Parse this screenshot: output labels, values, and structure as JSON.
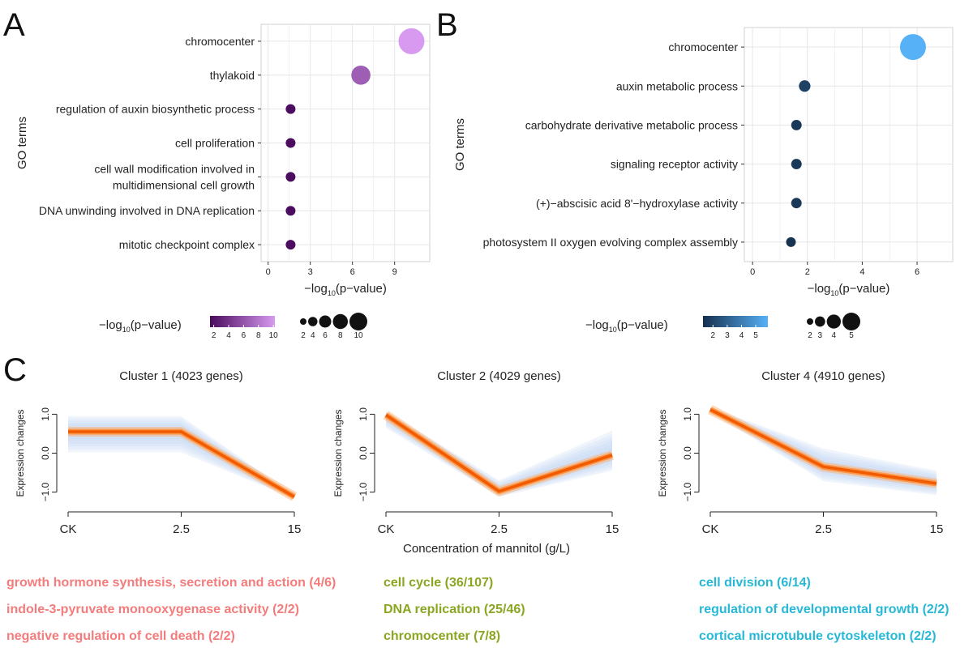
{
  "panels": {
    "a": "A",
    "b": "B",
    "c": "C"
  },
  "colors": {
    "A_low": "#4a0a5e",
    "A_high": "#d79af0",
    "B_low": "#16304e",
    "B_high": "#56b1f7",
    "band": "#c9daf3",
    "core": "#f25a00",
    "cluster1_text": "#f47c7c",
    "cluster2_text": "#8aa620",
    "cluster4_text": "#26b8d6"
  },
  "chart_data": [
    {
      "id": "A",
      "type": "scatter",
      "title": "",
      "xlabel": "−log",
      "xlabel_sub": "10",
      "xlabel_tail": "(p−value)",
      "ylabel": "GO terms",
      "xlim": [
        -0.5,
        11.5
      ],
      "xticks": [
        0,
        3,
        6,
        9
      ],
      "terms": [
        {
          "lines": [
            "chromocenter"
          ],
          "value": 10.2
        },
        {
          "lines": [
            "thylakoid"
          ],
          "value": 6.6
        },
        {
          "lines": [
            "regulation of auxin biosynthetic process"
          ],
          "value": 1.6
        },
        {
          "lines": [
            "cell proliferation"
          ],
          "value": 1.6
        },
        {
          "lines": [
            "cell wall modification involved in",
            "multidimensional cell growth"
          ],
          "value": 1.6
        },
        {
          "lines": [
            "DNA unwinding involved in DNA replication"
          ],
          "value": 1.6
        },
        {
          "lines": [
            "mitotic checkpoint complex"
          ],
          "value": 1.6
        }
      ],
      "legend": {
        "color_label": "−log",
        "color_label_sub": "10",
        "color_label_tail": "(p−value)",
        "color_ticks": [
          2,
          4,
          6,
          8,
          10
        ],
        "color_range": [
          1.5,
          10.2
        ],
        "size_ticks": [
          2,
          4,
          6,
          8,
          10
        ]
      }
    },
    {
      "id": "B",
      "type": "scatter",
      "title": "",
      "xlabel": "−log",
      "xlabel_sub": "10",
      "xlabel_tail": "(p−value)",
      "ylabel": "GO terms",
      "xlim": [
        -0.3,
        7.3
      ],
      "xticks": [
        0,
        2,
        4,
        6
      ],
      "terms": [
        {
          "lines": [
            "chromocenter"
          ],
          "value": 5.85
        },
        {
          "lines": [
            "auxin metabolic process"
          ],
          "value": 1.9
        },
        {
          "lines": [
            "carbohydrate derivative metabolic process"
          ],
          "value": 1.6
        },
        {
          "lines": [
            "signaling receptor activity"
          ],
          "value": 1.6
        },
        {
          "lines": [
            "(+)−abscisic acid 8'−hydroxylase activity"
          ],
          "value": 1.6
        },
        {
          "lines": [
            "photosystem II oxygen evolving complex assembly"
          ],
          "value": 1.4
        }
      ],
      "legend": {
        "color_label": "−log",
        "color_label_sub": "10",
        "color_label_tail": "(p−value)",
        "color_ticks": [
          2,
          3,
          4,
          5
        ],
        "color_range": [
          1.3,
          5.85
        ],
        "size_ticks": [
          2,
          3,
          4,
          5
        ]
      }
    },
    {
      "id": "C1",
      "type": "line",
      "title": "Cluster 1 (4023 genes)",
      "ylabel": "Expression changes",
      "categories": [
        "CK",
        "2.5",
        "15"
      ],
      "yticks": [
        1.0,
        0.0,
        -1.0
      ],
      "ytick_labels": [
        "1.0",
        "0.0",
        "−1.0"
      ],
      "ylim": [
        -1.3,
        1.3
      ],
      "core": [
        0.55,
        0.55,
        -1.12
      ],
      "band_upper": [
        0.95,
        0.95,
        -1.08
      ],
      "band_lower": [
        0.02,
        0.02,
        -1.17
      ],
      "enrichment": [
        "growth hormone synthesis, secretion and action (4/6)",
        "indole-3-pyruvate monooxygenase activity (2/2)",
        "negative regulation of cell death (2/2)"
      ]
    },
    {
      "id": "C2",
      "type": "line",
      "title": "Cluster 2 (4029 genes)",
      "ylabel": "Expression changes",
      "categories": [
        "CK",
        "2.5",
        "15"
      ],
      "yticks": [
        1.0,
        0.0,
        -1.0
      ],
      "ytick_labels": [
        "1.0",
        "0.0",
        "−1.0"
      ],
      "ylim": [
        -1.3,
        1.3
      ],
      "core": [
        0.98,
        -0.98,
        -0.05
      ],
      "band_upper": [
        1.08,
        -0.7,
        0.58
      ],
      "band_lower": [
        0.65,
        -1.12,
        -0.45
      ],
      "enrichment": [
        "cell cycle (36/107)",
        "DNA replication (25/46)",
        "chromocenter (7/8)"
      ]
    },
    {
      "id": "C4",
      "type": "line",
      "title": "Cluster 4 (4910 genes)",
      "ylabel": "Expression changes",
      "categories": [
        "CK",
        "2.5",
        "15"
      ],
      "yticks": [
        1.0,
        0.0,
        -1.0
      ],
      "ytick_labels": [
        "1.0",
        "0.0",
        "−1.0"
      ],
      "ylim": [
        -1.3,
        1.3
      ],
      "core": [
        1.12,
        -0.35,
        -0.78
      ],
      "band_upper": [
        1.18,
        0.12,
        -0.45
      ],
      "band_lower": [
        1.05,
        -0.72,
        -1.08
      ],
      "enrichment": [
        "cell division (6/14)",
        "regulation of developmental growth (2/2)",
        "cortical microtubule cytoskeleton (2/2)"
      ]
    }
  ],
  "shared_xlabel": "Concentration of mannitol (g/L)"
}
